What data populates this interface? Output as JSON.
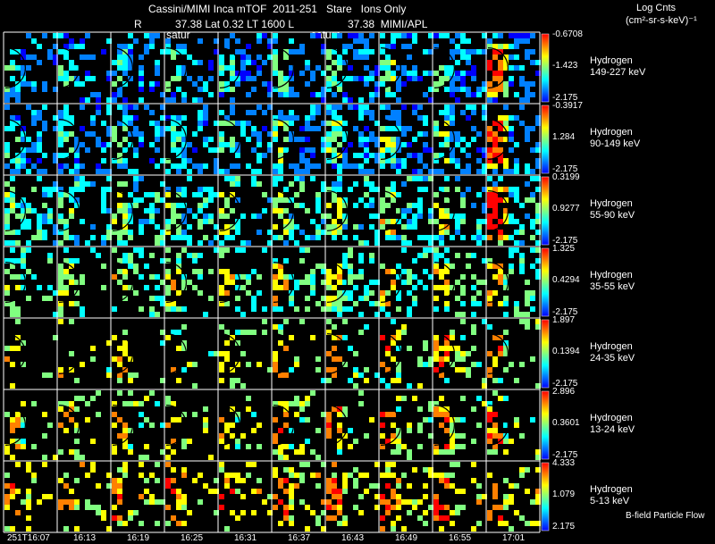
{
  "header": {
    "line1": "Cassini/MIMI Inca mTOF  2011-251   Stare   Ions Only",
    "r_label": "R",
    "line2": "37.38 Lat 0.32 LT 1600 L",
    "line2b": "37.38  MIMI/APL",
    "saturn_label_1": "satur",
    "saturn_label_2": "saturn",
    "units_line1": "Log Cnts",
    "units_line2": "(cm²-sr-s-keV)⁻¹"
  },
  "footer": {
    "bfield": "B-field Particle Flow"
  },
  "chart_data": {
    "type": "heatmap",
    "time_labels": [
      "251T16:07",
      "16:13",
      "16:19",
      "16:25",
      "16:31",
      "16:37",
      "16:43",
      "16:49",
      "16:55",
      "17:01"
    ],
    "rows": [
      {
        "species": "Hydrogen",
        "energy": "149-227 keV",
        "cb_max": "-0.6708",
        "cb_mid": "-1.423",
        "cb_min": "-2.175"
      },
      {
        "species": "Hydrogen",
        "energy": "90-149 keV",
        "cb_max": "-0.3917",
        "cb_mid": "1.284",
        "cb_min": "-2.175"
      },
      {
        "species": "Hydrogen",
        "energy": "55-90 keV",
        "cb_max": "0.3199",
        "cb_mid": "0.9277",
        "cb_min": "-2.175"
      },
      {
        "species": "Hydrogen",
        "energy": "35-55 keV",
        "cb_max": "1.325",
        "cb_mid": "0.4294",
        "cb_min": "-2.175"
      },
      {
        "species": "Hydrogen",
        "energy": "24-35 keV",
        "cb_max": "1.897",
        "cb_mid": "0.1394",
        "cb_min": "-2.175"
      },
      {
        "species": "Hydrogen",
        "energy": "13-24 keV",
        "cb_max": "2.896",
        "cb_mid": "0.3601",
        "cb_min": "-2.175"
      },
      {
        "species": "Hydrogen",
        "energy": "5-13 keV",
        "cb_max": "4.333",
        "cb_mid": "1.079",
        "cb_min": "2.175"
      }
    ],
    "colorscale": [
      "#0000ff",
      "#0080ff",
      "#00ffff",
      "#80ff80",
      "#ffff00",
      "#ff8000",
      "#ff0000"
    ],
    "row_density": [
      0.3,
      0.34,
      0.28,
      0.2,
      0.09,
      0.12,
      0.17
    ],
    "row_base_level": [
      0.18,
      0.2,
      0.33,
      0.42,
      0.5,
      0.52,
      0.62
    ]
  }
}
